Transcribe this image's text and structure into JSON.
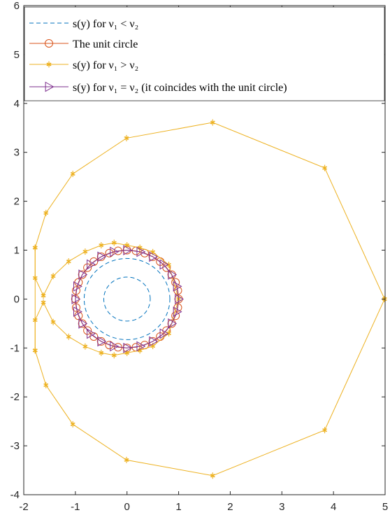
{
  "chart_data": {
    "type": "line",
    "xlim": [
      -2,
      5
    ],
    "ylim": [
      -4,
      6
    ],
    "xticks": [
      "-2",
      "-1",
      "0",
      "1",
      "2",
      "3",
      "4",
      "5"
    ],
    "yticks": [
      "-4",
      "-3",
      "-2",
      "-1",
      "0",
      "1",
      "2",
      "3",
      "4",
      "5",
      "6"
    ],
    "grid": false,
    "legend_placement": "top-left",
    "legend_entries": [
      "s(y) for ν₁ < ν₂",
      "The unit circle",
      "s(y) for ν₁ > ν₂",
      "s(y) for ν₁ = ν₂ (it coincides with the unit circle)"
    ],
    "colors": {
      "blue": "#0072BD",
      "red": "#D95319",
      "yellow": "#EDB120",
      "purple": "#7E2F8E"
    },
    "series": [
      {
        "style": "dashed",
        "color": "blue",
        "marker": "none",
        "curves": [
          {
            "shape": "circle",
            "center": [
              0,
              0
            ],
            "radius": 0.45
          },
          {
            "shape": "circle",
            "center": [
              0,
              0
            ],
            "radius": 0.83
          }
        ]
      },
      {
        "style": "solid",
        "color": "red",
        "marker": "circle",
        "shape": "circle",
        "center": [
          0,
          0
        ],
        "radius": 1.0,
        "points": 36
      },
      {
        "style": "solid",
        "color": "yellow",
        "marker": "asterisk",
        "x": [
          4.99,
          3.83,
          1.66,
          -0.01,
          -1.05,
          -1.57,
          -1.78,
          -1.78,
          -1.57,
          -1.05,
          -0.01,
          1.66,
          3.83,
          4.99
        ],
        "y": [
          0.0,
          2.68,
          3.61,
          3.29,
          2.56,
          1.76,
          1.05,
          -1.05,
          -1.76,
          -2.56,
          -3.29,
          -3.61,
          -2.68,
          0.0
        ]
      },
      {
        "style": "solid",
        "color": "yellow",
        "marker": "asterisk",
        "x": [
          -1.78,
          -1.78,
          -1.62,
          -1.43,
          -1.13,
          -0.81,
          -0.5,
          -0.25,
          0.0,
          0.25,
          0.5,
          0.81,
          1.0,
          0.81,
          0.5,
          0.25,
          0.0,
          -0.25,
          -0.5,
          -0.81,
          -1.13,
          -1.43,
          -1.62,
          -1.78,
          -1.78
        ],
        "y": [
          1.05,
          0.43,
          0.07,
          0.47,
          0.77,
          0.97,
          1.1,
          1.15,
          1.1,
          1.05,
          0.96,
          0.7,
          0.0,
          -0.7,
          -0.96,
          -1.05,
          -1.1,
          -1.15,
          -1.1,
          -0.97,
          -0.77,
          -0.47,
          -0.07,
          -0.43,
          -1.05
        ]
      },
      {
        "style": "solid",
        "color": "purple",
        "marker": "triangle-right",
        "shape": "circle",
        "center": [
          0,
          0
        ],
        "radius": 1.0,
        "points": 24
      }
    ]
  }
}
